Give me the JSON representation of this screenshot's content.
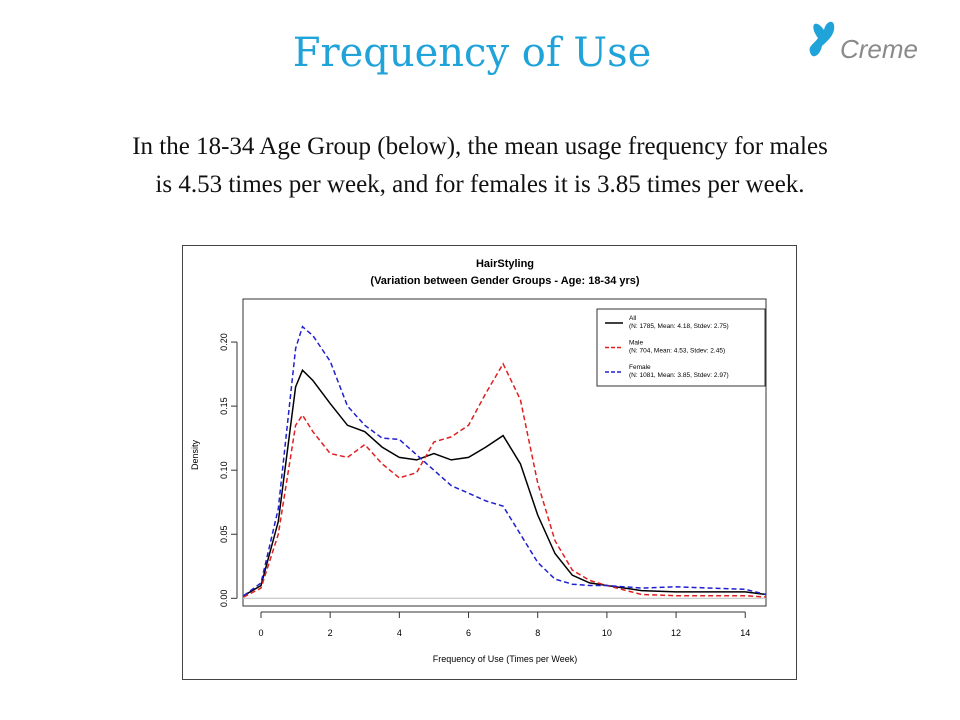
{
  "slide": {
    "title": "Frequency of Use",
    "body_lines": [
      "In the 18-34 Age Group (below), the mean usage frequency for males",
      "is 4.53 times per week, and for females it is 3.85 times per week."
    ],
    "logo": "Creme"
  },
  "chart_data": {
    "type": "line",
    "title": "HairStyling",
    "subtitle": "(Variation between Gender Groups - Age: 18-34 yrs)",
    "x_label": "Frequency of Use (Times per Week)",
    "y_label": "Density",
    "x": [
      -0.5,
      0,
      0.5,
      1,
      1.2,
      1.5,
      2,
      2.5,
      3,
      3.5,
      4,
      4.5,
      5,
      5.5,
      6,
      6.5,
      7,
      7.5,
      8,
      8.5,
      9,
      9.5,
      10,
      11,
      12,
      13,
      14,
      14.6
    ],
    "series": [
      {
        "name": "All",
        "legend_detail": "(N: 1785, Mean: 4.18, Stdev: 2.75)",
        "color": "#000000",
        "dashed": false,
        "values": [
          0.002,
          0.01,
          0.06,
          0.165,
          0.178,
          0.17,
          0.152,
          0.135,
          0.13,
          0.118,
          0.11,
          0.108,
          0.113,
          0.108,
          0.11,
          0.118,
          0.127,
          0.105,
          0.065,
          0.035,
          0.018,
          0.012,
          0.01,
          0.006,
          0.005,
          0.005,
          0.005,
          0.003
        ]
      },
      {
        "name": "Male",
        "legend_detail": "(N: 704, Mean: 4.53, Stdev: 2.45)",
        "color": "#e02020",
        "dashed": true,
        "values": [
          0.001,
          0.008,
          0.05,
          0.135,
          0.143,
          0.13,
          0.113,
          0.11,
          0.12,
          0.105,
          0.094,
          0.098,
          0.122,
          0.126,
          0.135,
          0.16,
          0.183,
          0.155,
          0.09,
          0.045,
          0.022,
          0.014,
          0.01,
          0.003,
          0.002,
          0.002,
          0.002,
          0.001
        ]
      },
      {
        "name": "Female",
        "legend_detail": "(N: 1081, Mean: 3.85, Stdev: 2.97)",
        "color": "#2020d0",
        "dashed": true,
        "values": [
          0.002,
          0.012,
          0.07,
          0.195,
          0.212,
          0.205,
          0.185,
          0.15,
          0.135,
          0.125,
          0.124,
          0.112,
          0.1,
          0.088,
          0.082,
          0.076,
          0.072,
          0.05,
          0.028,
          0.015,
          0.011,
          0.01,
          0.01,
          0.008,
          0.009,
          0.008,
          0.007,
          0.003
        ]
      }
    ],
    "xlim": [
      -0.52,
      14.6
    ],
    "ylim": [
      -0.006,
      0.2336
    ],
    "xticks": [
      0,
      2,
      4,
      6,
      8,
      10,
      12,
      14
    ],
    "yticks": [
      {
        "value": 0,
        "label": "0.00"
      },
      {
        "value": 0.05,
        "label": "0.05"
      },
      {
        "value": 0.1,
        "label": "0.10"
      },
      {
        "value": 0.15,
        "label": "0.15"
      },
      {
        "value": 0.2,
        "label": "0.20"
      }
    ],
    "legend_position": "top-right"
  }
}
